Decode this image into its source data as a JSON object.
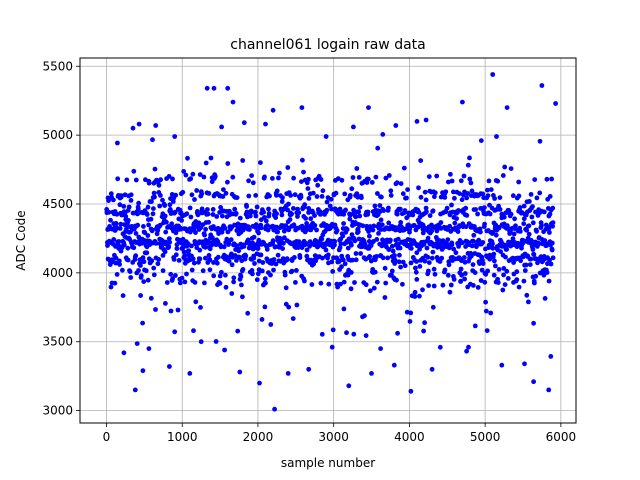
{
  "chart_data": {
    "type": "scatter",
    "title": "channel061 logain raw data",
    "xlabel": "sample number",
    "ylabel": "ADC Code",
    "xlim": [
      -350,
      6200
    ],
    "ylim": [
      2910,
      5560
    ],
    "xticks": [
      0,
      1000,
      2000,
      3000,
      4000,
      5000,
      6000
    ],
    "yticks": [
      3000,
      3500,
      4000,
      4500,
      5000,
      5500
    ],
    "grid": true,
    "marker_color": "#0000ff",
    "n_samples": 5900,
    "levels": [
      {
        "y": 4210,
        "weight": 0.23,
        "spread": 22
      },
      {
        "y": 4325,
        "weight": 0.19,
        "spread": 22
      },
      {
        "y": 4100,
        "weight": 0.15,
        "spread": 22
      },
      {
        "y": 4440,
        "weight": 0.15,
        "spread": 22
      },
      {
        "y": 4560,
        "weight": 0.07,
        "spread": 20
      },
      {
        "y": 4000,
        "weight": 0.05,
        "spread": 20
      },
      {
        "y": 4680,
        "weight": 0.035,
        "spread": 20
      },
      {
        "y": 3930,
        "weight": 0.03,
        "spread": 20
      }
    ],
    "outliers": [
      {
        "x": 230,
        "y": 3420
      },
      {
        "x": 380,
        "y": 3150
      },
      {
        "x": 480,
        "y": 3290
      },
      {
        "x": 830,
        "y": 3320
      },
      {
        "x": 1100,
        "y": 3270
      },
      {
        "x": 1330,
        "y": 5340
      },
      {
        "x": 1420,
        "y": 5340
      },
      {
        "x": 1600,
        "y": 5340
      },
      {
        "x": 1670,
        "y": 5240
      },
      {
        "x": 1760,
        "y": 3280
      },
      {
        "x": 2020,
        "y": 3200
      },
      {
        "x": 2200,
        "y": 5180
      },
      {
        "x": 2220,
        "y": 3010
      },
      {
        "x": 2400,
        "y": 3270
      },
      {
        "x": 2580,
        "y": 5200
      },
      {
        "x": 2670,
        "y": 3300
      },
      {
        "x": 3200,
        "y": 3180
      },
      {
        "x": 3460,
        "y": 5200
      },
      {
        "x": 3500,
        "y": 3270
      },
      {
        "x": 3800,
        "y": 3330
      },
      {
        "x": 4020,
        "y": 3140
      },
      {
        "x": 4100,
        "y": 5100
      },
      {
        "x": 4220,
        "y": 5110
      },
      {
        "x": 4700,
        "y": 5240
      },
      {
        "x": 5100,
        "y": 5440
      },
      {
        "x": 5290,
        "y": 5200
      },
      {
        "x": 5640,
        "y": 3210
      },
      {
        "x": 5750,
        "y": 5360
      },
      {
        "x": 5840,
        "y": 3150
      },
      {
        "x": 5930,
        "y": 5230
      },
      {
        "x": 350,
        "y": 5050
      },
      {
        "x": 430,
        "y": 5080
      },
      {
        "x": 650,
        "y": 5070
      },
      {
        "x": 900,
        "y": 4990
      },
      {
        "x": 1520,
        "y": 5060
      },
      {
        "x": 1820,
        "y": 5090
      },
      {
        "x": 2100,
        "y": 5080
      },
      {
        "x": 2900,
        "y": 4990
      },
      {
        "x": 3260,
        "y": 5060
      },
      {
        "x": 3820,
        "y": 5070
      },
      {
        "x": 4950,
        "y": 4960
      },
      {
        "x": 5150,
        "y": 4990
      },
      {
        "x": 560,
        "y": 3450
      },
      {
        "x": 1250,
        "y": 3500
      },
      {
        "x": 1560,
        "y": 3440
      },
      {
        "x": 2980,
        "y": 3460
      },
      {
        "x": 3620,
        "y": 3450
      },
      {
        "x": 4300,
        "y": 3300
      },
      {
        "x": 4780,
        "y": 3460
      },
      {
        "x": 5220,
        "y": 3330
      },
      {
        "x": 5520,
        "y": 3340
      }
    ]
  }
}
